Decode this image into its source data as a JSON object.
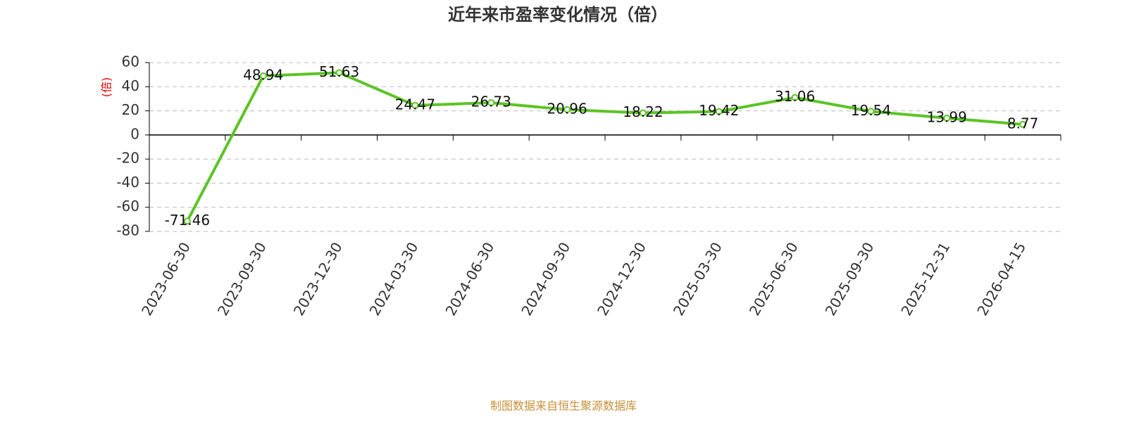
{
  "chart_data": {
    "type": "line",
    "title": "近年来市盈率变化情况（倍）",
    "y_label": "(倍)",
    "categories": [
      "2023-06-30",
      "2023-09-30",
      "2023-12-30",
      "2024-03-30",
      "2024-06-30",
      "2024-09-30",
      "2024-12-30",
      "2025-03-30",
      "2025-06-30",
      "2025-09-30",
      "2025-12-31",
      "2026-04-15"
    ],
    "values": [
      -71.46,
      48.94,
      51.63,
      24.47,
      26.73,
      20.96,
      18.22,
      19.42,
      31.06,
      19.54,
      13.99,
      8.77
    ],
    "color": "#5bc425",
    "ylim": [
      -80,
      60
    ],
    "yticks": [
      -80,
      -60,
      -40,
      -20,
      0,
      20,
      40,
      60
    ],
    "grid": true,
    "source": "制图数据来自恒生聚源数据库"
  }
}
